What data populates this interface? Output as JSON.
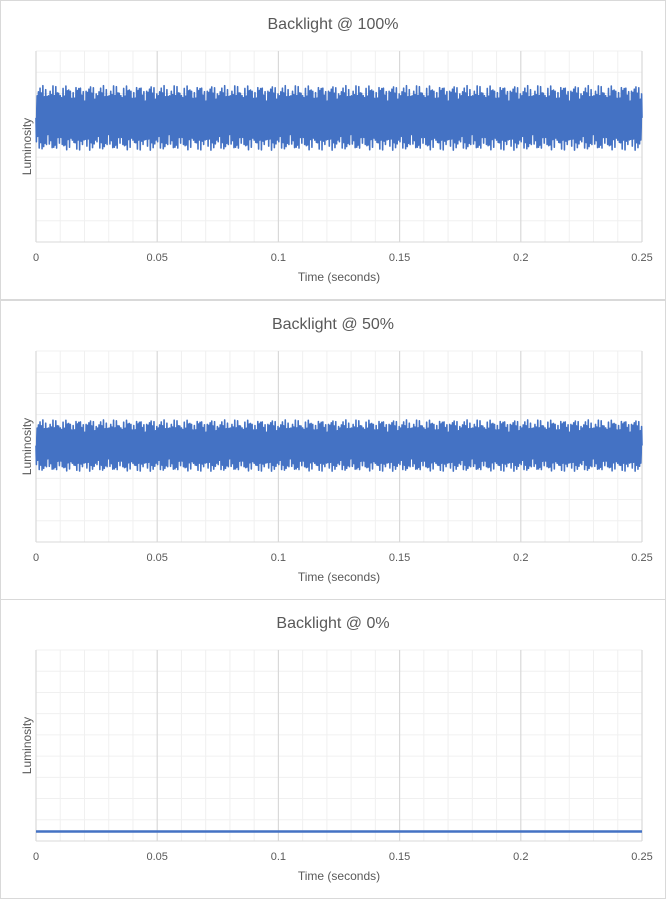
{
  "colors": {
    "series": "#4472C4",
    "major_grid": "#d9d9d9",
    "minor_grid": "#f0f0f0",
    "text": "#595959",
    "border": "#d9d9d9"
  },
  "chart_data": [
    {
      "type": "line",
      "title": "Backlight @ 100%",
      "xlabel": "Time (seconds)",
      "ylabel": "Luminosity",
      "xlim": [
        0,
        0.25
      ],
      "x_ticks": [
        "0",
        "0.05",
        "0.1",
        "0.15",
        "0.2",
        "0.25"
      ],
      "y_ticks_labeled": false,
      "grid": true,
      "series": [
        {
          "name": "",
          "signal": "oscillating",
          "mean_level": 0.65,
          "envelope_min": 0.48,
          "envelope_max": 0.82,
          "ripple_cycles": 50
        }
      ]
    },
    {
      "type": "line",
      "title": "Backlight @ 50%",
      "xlabel": "Time (seconds)",
      "ylabel": "Luminosity",
      "xlim": [
        0,
        0.25
      ],
      "x_ticks": [
        "0",
        "0.05",
        "0.1",
        "0.15",
        "0.2",
        "0.25"
      ],
      "y_ticks_labeled": false,
      "grid": true,
      "series": [
        {
          "name": "",
          "signal": "oscillating",
          "mean_level": 0.5,
          "envelope_min": 0.37,
          "envelope_max": 0.64,
          "ripple_cycles": 50
        }
      ]
    },
    {
      "type": "line",
      "title": "Backlight @ 0%",
      "xlabel": "Time (seconds)",
      "ylabel": "Luminosity",
      "xlim": [
        0,
        0.25
      ],
      "x_ticks": [
        "0",
        "0.05",
        "0.1",
        "0.15",
        "0.2",
        "0.25"
      ],
      "y_ticks_labeled": false,
      "grid": true,
      "series": [
        {
          "name": "",
          "signal": "flat",
          "mean_level": 0.05
        }
      ]
    }
  ]
}
